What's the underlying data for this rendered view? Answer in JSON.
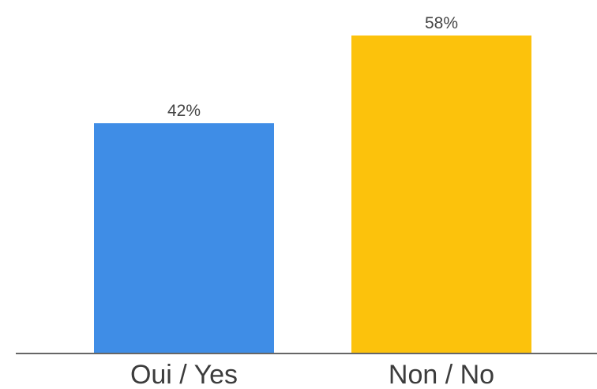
{
  "chart_data": {
    "type": "bar",
    "categories": [
      "Oui / Yes",
      "Non / No"
    ],
    "values": [
      42,
      58
    ],
    "data_labels": [
      "42%",
      "58%"
    ],
    "colors": [
      "#3f8de6",
      "#fcc20c"
    ],
    "axis_color": "#666666",
    "ylim": [
      0,
      58
    ],
    "grid": false,
    "legend": "none"
  }
}
